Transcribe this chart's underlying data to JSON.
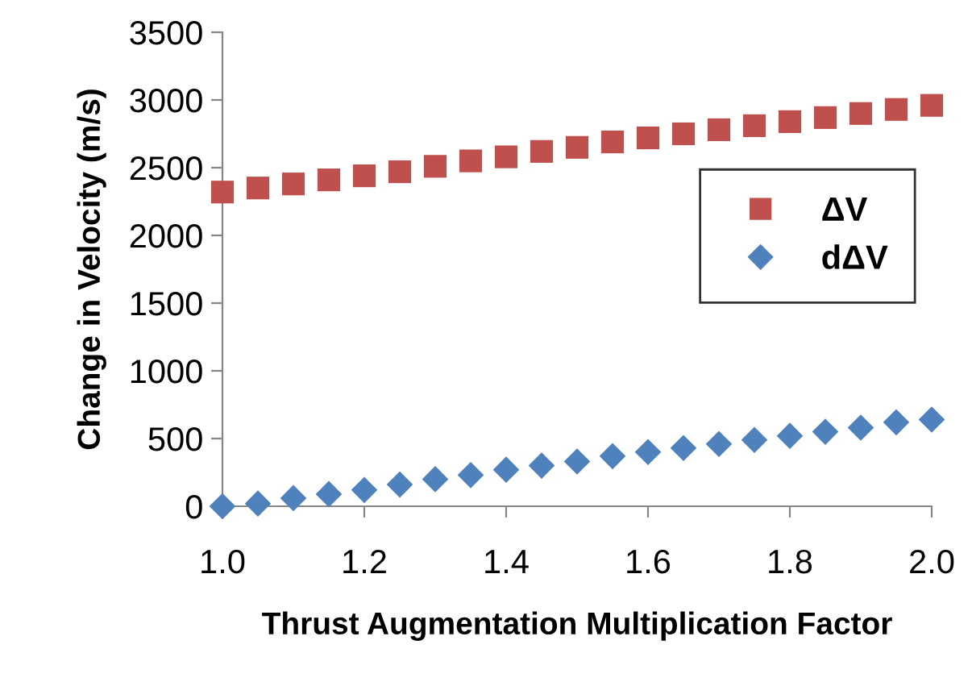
{
  "chart_data": {
    "type": "scatter",
    "xlabel": "Thrust Augmentation Multiplication Factor",
    "ylabel": "Change in Velocity (m/s)",
    "x": [
      1.0,
      1.05,
      1.1,
      1.15,
      1.2,
      1.25,
      1.3,
      1.35,
      1.4,
      1.45,
      1.5,
      1.55,
      1.6,
      1.65,
      1.7,
      1.75,
      1.8,
      1.85,
      1.9,
      1.95,
      2.0
    ],
    "series": [
      {
        "name": "ΔV",
        "color": "#c0504d",
        "marker": "square",
        "values": [
          2320,
          2350,
          2380,
          2410,
          2440,
          2470,
          2510,
          2550,
          2580,
          2620,
          2650,
          2690,
          2720,
          2750,
          2780,
          2810,
          2840,
          2870,
          2900,
          2930,
          2960
        ]
      },
      {
        "name": "dΔV",
        "color": "#4f81bd",
        "marker": "diamond",
        "values": [
          0,
          20,
          60,
          90,
          120,
          160,
          200,
          230,
          270,
          300,
          330,
          370,
          400,
          430,
          460,
          490,
          520,
          550,
          580,
          620,
          640
        ]
      }
    ],
    "xlim": [
      1.0,
      2.0
    ],
    "xticks": [
      {
        "value": 1.0,
        "label": "1.0"
      },
      {
        "value": 1.2,
        "label": "1.2"
      },
      {
        "value": 1.4,
        "label": "1.4"
      },
      {
        "value": 1.6,
        "label": "1.6"
      },
      {
        "value": 1.8,
        "label": "1.8"
      },
      {
        "value": 2.0,
        "label": "2.0"
      }
    ],
    "ylim": [
      0,
      3500
    ],
    "yticks": [
      0,
      500,
      1000,
      1500,
      2000,
      2500,
      3000,
      3500
    ],
    "grid": false,
    "legend": "right"
  }
}
